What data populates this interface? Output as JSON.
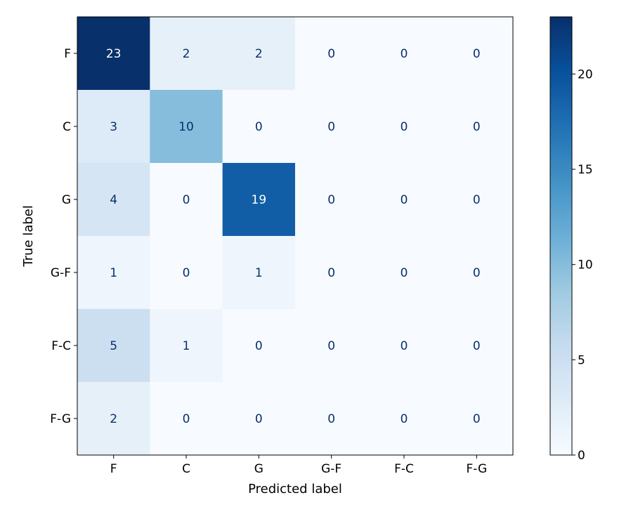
{
  "chart_data": {
    "type": "heatmap",
    "title": "",
    "xlabel": "Predicted label",
    "ylabel": "True label",
    "x_categories": [
      "F",
      "C",
      "G",
      "G-F",
      "F-C",
      "F-G"
    ],
    "y_categories": [
      "F",
      "C",
      "G",
      "G-F",
      "F-C",
      "F-G"
    ],
    "values": [
      [
        23,
        2,
        2,
        0,
        0,
        0
      ],
      [
        3,
        10,
        0,
        0,
        0,
        0
      ],
      [
        4,
        0,
        19,
        0,
        0,
        0
      ],
      [
        1,
        0,
        1,
        0,
        0,
        0
      ],
      [
        5,
        1,
        0,
        0,
        0,
        0
      ],
      [
        2,
        0,
        0,
        0,
        0,
        0
      ]
    ],
    "colormap": "Blues",
    "colormap_low": "#f7fbff",
    "colormap_high": "#08306b",
    "colorbar": {
      "range": [
        0,
        23
      ],
      "ticks": [
        0,
        5,
        10,
        15,
        20
      ],
      "tick_labels": [
        "0",
        "5",
        "10",
        "15",
        "20"
      ]
    },
    "text_color_light": "#ffffff",
    "text_color_dark": "#08306b",
    "grid": false
  }
}
